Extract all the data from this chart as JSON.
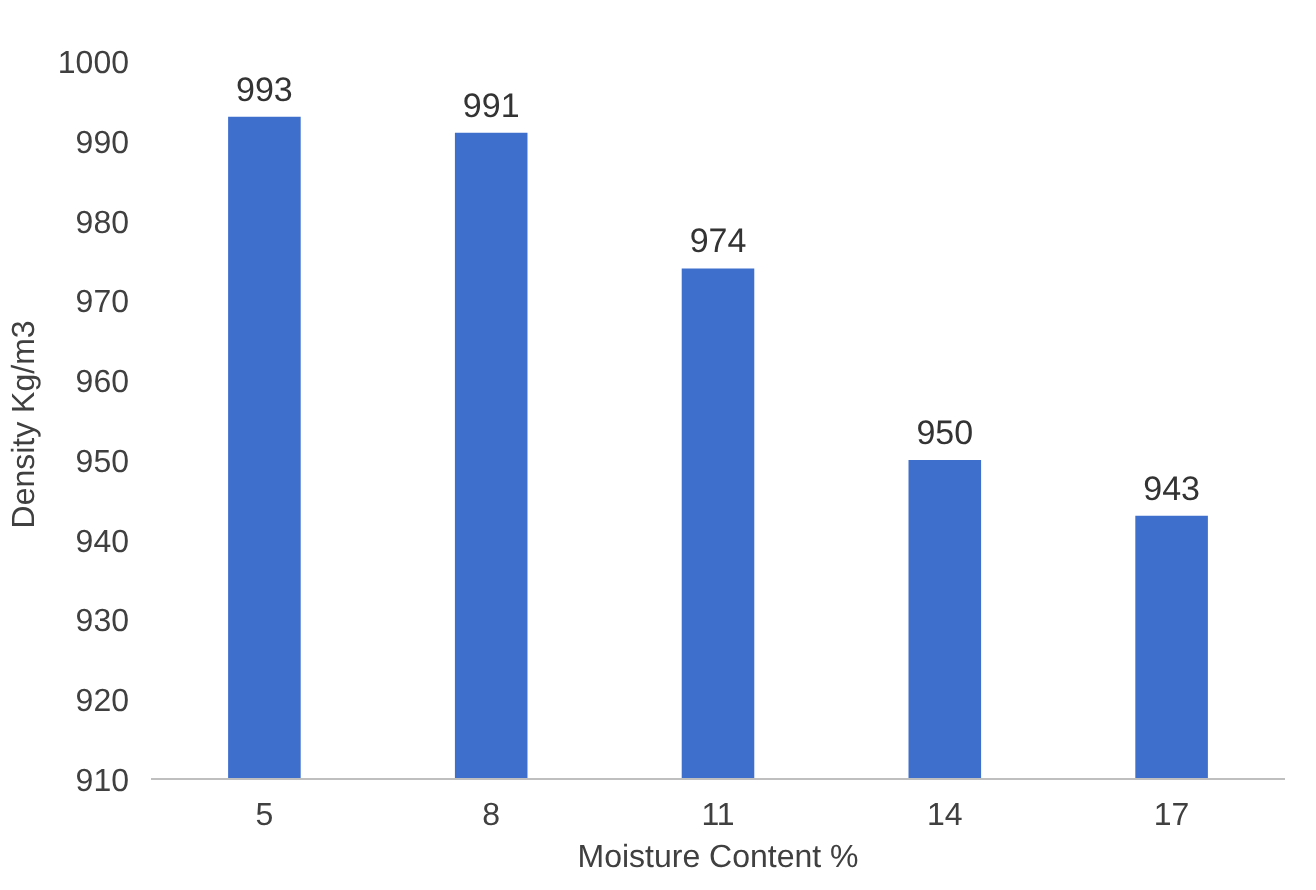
{
  "chart_data": {
    "type": "bar",
    "xlabel": "Moisture Content %",
    "ylabel": "Density  Kg/m3",
    "categories": [
      "5",
      "8",
      "11",
      "14",
      "17"
    ],
    "values": [
      993,
      991,
      974,
      950,
      943
    ],
    "color": "#3f6fcc",
    "ylim": [
      910,
      1000
    ],
    "yticks": [
      910,
      920,
      930,
      940,
      950,
      960,
      970,
      980,
      990,
      1000
    ],
    "data_labels": true,
    "grid": false
  }
}
